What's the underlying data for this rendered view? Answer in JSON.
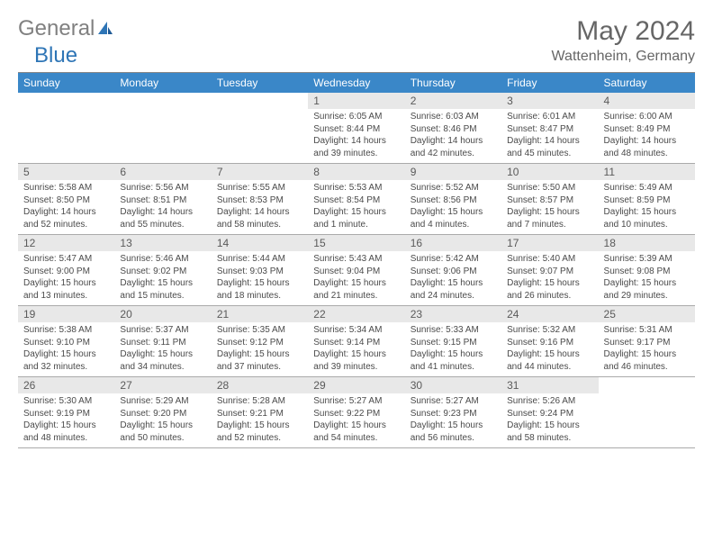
{
  "logo": {
    "text1": "General",
    "text2": "Blue"
  },
  "title": "May 2024",
  "location": "Wattenheim, Germany",
  "header_bg": "#3a87c8",
  "daynum_bg": "#e8e8e8",
  "weekdays": [
    "Sunday",
    "Monday",
    "Tuesday",
    "Wednesday",
    "Thursday",
    "Friday",
    "Saturday"
  ],
  "leading_blanks": 3,
  "days": [
    {
      "n": "1",
      "sr": "6:05 AM",
      "ss": "8:44 PM",
      "dl": "14 hours and 39 minutes."
    },
    {
      "n": "2",
      "sr": "6:03 AM",
      "ss": "8:46 PM",
      "dl": "14 hours and 42 minutes."
    },
    {
      "n": "3",
      "sr": "6:01 AM",
      "ss": "8:47 PM",
      "dl": "14 hours and 45 minutes."
    },
    {
      "n": "4",
      "sr": "6:00 AM",
      "ss": "8:49 PM",
      "dl": "14 hours and 48 minutes."
    },
    {
      "n": "5",
      "sr": "5:58 AM",
      "ss": "8:50 PM",
      "dl": "14 hours and 52 minutes."
    },
    {
      "n": "6",
      "sr": "5:56 AM",
      "ss": "8:51 PM",
      "dl": "14 hours and 55 minutes."
    },
    {
      "n": "7",
      "sr": "5:55 AM",
      "ss": "8:53 PM",
      "dl": "14 hours and 58 minutes."
    },
    {
      "n": "8",
      "sr": "5:53 AM",
      "ss": "8:54 PM",
      "dl": "15 hours and 1 minute."
    },
    {
      "n": "9",
      "sr": "5:52 AM",
      "ss": "8:56 PM",
      "dl": "15 hours and 4 minutes."
    },
    {
      "n": "10",
      "sr": "5:50 AM",
      "ss": "8:57 PM",
      "dl": "15 hours and 7 minutes."
    },
    {
      "n": "11",
      "sr": "5:49 AM",
      "ss": "8:59 PM",
      "dl": "15 hours and 10 minutes."
    },
    {
      "n": "12",
      "sr": "5:47 AM",
      "ss": "9:00 PM",
      "dl": "15 hours and 13 minutes."
    },
    {
      "n": "13",
      "sr": "5:46 AM",
      "ss": "9:02 PM",
      "dl": "15 hours and 15 minutes."
    },
    {
      "n": "14",
      "sr": "5:44 AM",
      "ss": "9:03 PM",
      "dl": "15 hours and 18 minutes."
    },
    {
      "n": "15",
      "sr": "5:43 AM",
      "ss": "9:04 PM",
      "dl": "15 hours and 21 minutes."
    },
    {
      "n": "16",
      "sr": "5:42 AM",
      "ss": "9:06 PM",
      "dl": "15 hours and 24 minutes."
    },
    {
      "n": "17",
      "sr": "5:40 AM",
      "ss": "9:07 PM",
      "dl": "15 hours and 26 minutes."
    },
    {
      "n": "18",
      "sr": "5:39 AM",
      "ss": "9:08 PM",
      "dl": "15 hours and 29 minutes."
    },
    {
      "n": "19",
      "sr": "5:38 AM",
      "ss": "9:10 PM",
      "dl": "15 hours and 32 minutes."
    },
    {
      "n": "20",
      "sr": "5:37 AM",
      "ss": "9:11 PM",
      "dl": "15 hours and 34 minutes."
    },
    {
      "n": "21",
      "sr": "5:35 AM",
      "ss": "9:12 PM",
      "dl": "15 hours and 37 minutes."
    },
    {
      "n": "22",
      "sr": "5:34 AM",
      "ss": "9:14 PM",
      "dl": "15 hours and 39 minutes."
    },
    {
      "n": "23",
      "sr": "5:33 AM",
      "ss": "9:15 PM",
      "dl": "15 hours and 41 minutes."
    },
    {
      "n": "24",
      "sr": "5:32 AM",
      "ss": "9:16 PM",
      "dl": "15 hours and 44 minutes."
    },
    {
      "n": "25",
      "sr": "5:31 AM",
      "ss": "9:17 PM",
      "dl": "15 hours and 46 minutes."
    },
    {
      "n": "26",
      "sr": "5:30 AM",
      "ss": "9:19 PM",
      "dl": "15 hours and 48 minutes."
    },
    {
      "n": "27",
      "sr": "5:29 AM",
      "ss": "9:20 PM",
      "dl": "15 hours and 50 minutes."
    },
    {
      "n": "28",
      "sr": "5:28 AM",
      "ss": "9:21 PM",
      "dl": "15 hours and 52 minutes."
    },
    {
      "n": "29",
      "sr": "5:27 AM",
      "ss": "9:22 PM",
      "dl": "15 hours and 54 minutes."
    },
    {
      "n": "30",
      "sr": "5:27 AM",
      "ss": "9:23 PM",
      "dl": "15 hours and 56 minutes."
    },
    {
      "n": "31",
      "sr": "5:26 AM",
      "ss": "9:24 PM",
      "dl": "15 hours and 58 minutes."
    }
  ],
  "labels": {
    "sunrise": "Sunrise:",
    "sunset": "Sunset:",
    "daylight": "Daylight:"
  }
}
